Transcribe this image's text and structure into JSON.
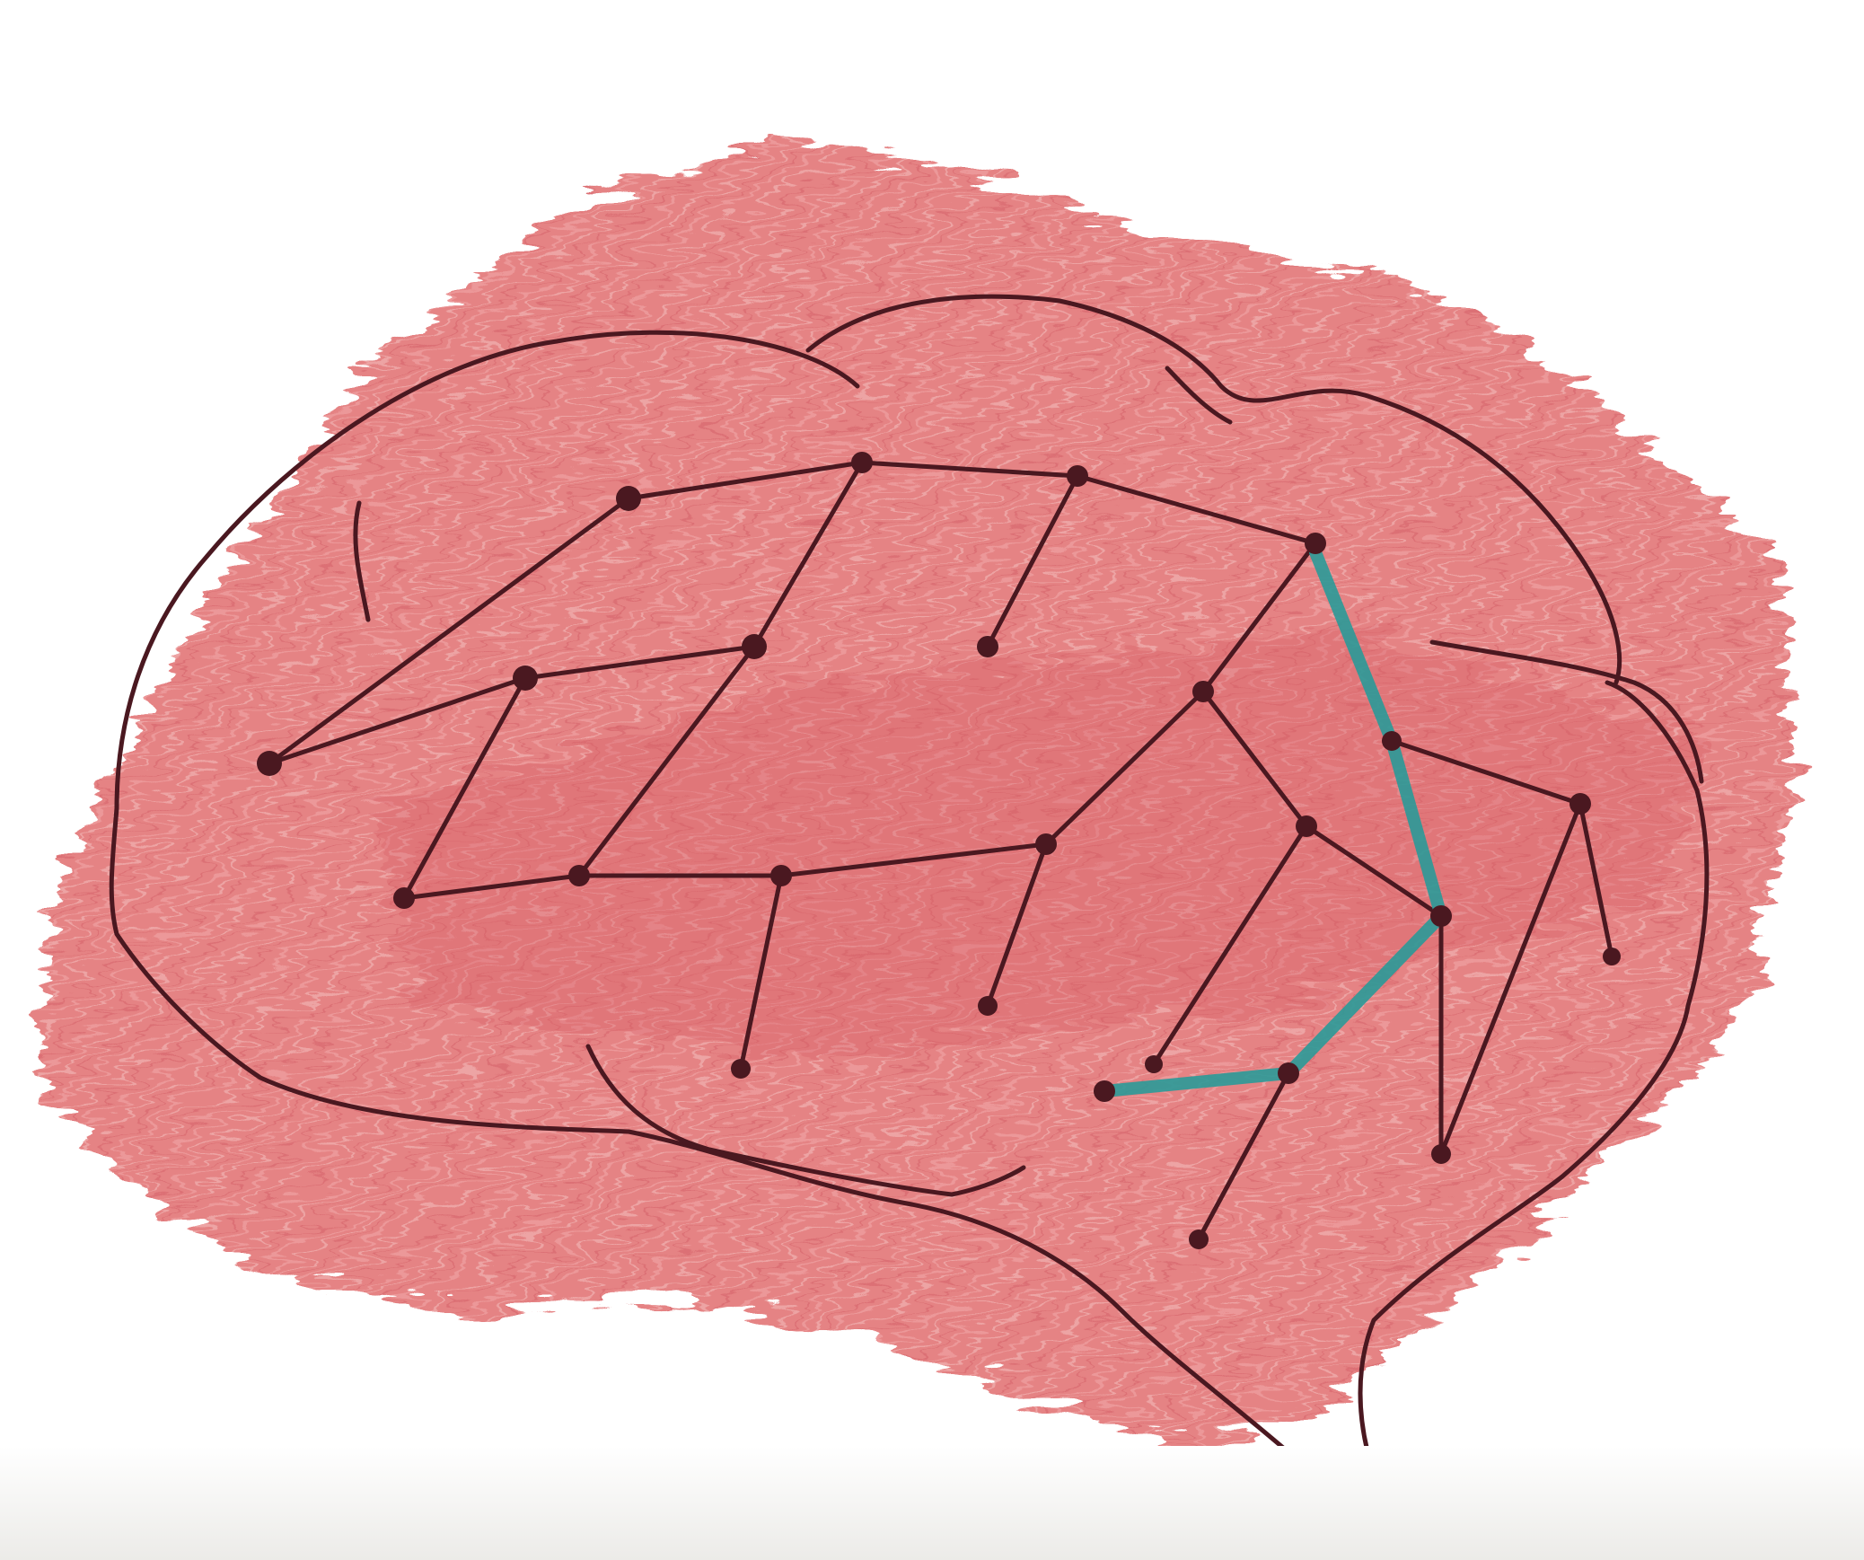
{
  "drawing": {
    "subject": "brain-network-sketch",
    "colors": {
      "background": "#ffffff",
      "shading": "#e07878",
      "shading_dark": "#d85f66",
      "ink": "#4a1820",
      "highlight": "#2a9a98",
      "paper_shadow": "#ecebe8"
    }
  }
}
